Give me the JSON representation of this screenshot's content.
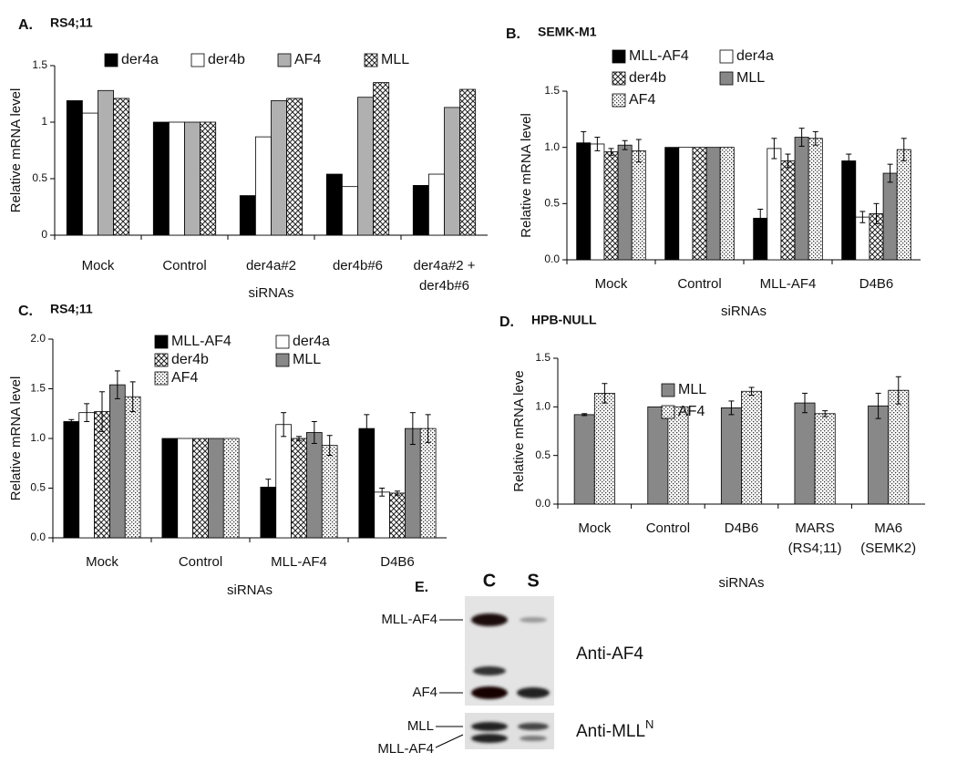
{
  "chart_data": [
    {
      "type": "bar",
      "label": "A.",
      "title": "RS4;11",
      "ylabel": "Relative mRNA level",
      "xlabel": "siRNAs",
      "categories": [
        [
          "Mock"
        ],
        [
          "Control"
        ],
        [
          "der4a#2"
        ],
        [
          "der4b#6"
        ],
        [
          "der4a#2 +",
          "der4b#6"
        ]
      ],
      "series": [
        {
          "name": "der4a",
          "color": "#000000",
          "pattern": "solid",
          "values": [
            1.19,
            1,
            0.35,
            0.54,
            0.44
          ]
        },
        {
          "name": "der4b",
          "color": "#ffffff",
          "pattern": "solid",
          "values": [
            1.08,
            1,
            0.87,
            0.43,
            0.54
          ]
        },
        {
          "name": "AF4",
          "color": "#b0b0b0",
          "pattern": "solid",
          "values": [
            1.28,
            1,
            1.19,
            1.22,
            1.13
          ]
        },
        {
          "name": "MLL",
          "color": "#ffffff",
          "pattern": "cross",
          "values": [
            1.21,
            1,
            1.21,
            1.35,
            1.29
          ]
        }
      ],
      "ylim": [
        0,
        1.5
      ],
      "yticks": [
        0,
        0.5,
        1,
        1.5
      ],
      "legend_columns": 4
    },
    {
      "type": "bar",
      "label": "B.",
      "title": "SEMK-M1",
      "ylabel": "Relative mRNA level",
      "xlabel": "siRNAs",
      "categories": [
        [
          "Mock"
        ],
        [
          "Control"
        ],
        [
          "MLL-AF4"
        ],
        [
          "D4B6"
        ]
      ],
      "series": [
        {
          "name": "MLL-AF4",
          "color": "#000000",
          "pattern": "solid",
          "values": [
            1.04,
            1,
            0.37,
            0.88
          ],
          "errors": [
            0.1,
            0,
            0.08,
            0.06
          ]
        },
        {
          "name": "der4a",
          "color": "#ffffff",
          "pattern": "solid",
          "values": [
            1.03,
            1,
            0.99,
            0.38
          ],
          "errors": [
            0.06,
            0,
            0.09,
            0.05
          ]
        },
        {
          "name": "der4b",
          "color": "#ffffff",
          "pattern": "cross",
          "values": [
            0.96,
            1,
            0.88,
            0.41
          ],
          "errors": [
            0.03,
            0,
            0.06,
            0.09
          ]
        },
        {
          "name": "MLL",
          "color": "#888888",
          "pattern": "solid",
          "values": [
            1.02,
            1,
            1.09,
            0.77
          ],
          "errors": [
            0.04,
            0,
            0.08,
            0.08
          ]
        },
        {
          "name": "AF4",
          "color": "#ffffff",
          "pattern": "dots",
          "values": [
            0.97,
            1,
            1.08,
            0.98
          ],
          "errors": [
            0.1,
            0,
            0.06,
            0.1
          ]
        }
      ],
      "ylim": [
        0,
        1.5
      ],
      "yticks": [
        {
          "value": 0,
          "label": "0.0"
        },
        0.5,
        {
          "value": 1,
          "label": "1.0"
        },
        1.5
      ],
      "legend_columns": 2
    },
    {
      "type": "bar",
      "label": "C.",
      "title": "RS4;11",
      "ylabel": "Relative mRNA level",
      "xlabel": "siRNAs",
      "categories": [
        [
          "Mock"
        ],
        [
          "Control"
        ],
        [
          "MLL-AF4"
        ],
        [
          "D4B6"
        ]
      ],
      "series": [
        {
          "name": "MLL-AF4",
          "color": "#000000",
          "pattern": "solid",
          "values": [
            1.17,
            1,
            0.51,
            1.1
          ],
          "errors": [
            0.02,
            0,
            0.08,
            0.14
          ]
        },
        {
          "name": "der4a",
          "color": "#ffffff",
          "pattern": "solid",
          "values": [
            1.26,
            1,
            1.14,
            0.46
          ],
          "errors": [
            0.09,
            0,
            0.12,
            0.04
          ]
        },
        {
          "name": "der4b",
          "color": "#ffffff",
          "pattern": "cross",
          "values": [
            1.27,
            1,
            1.0,
            0.45
          ],
          "errors": [
            0.2,
            0,
            0.02,
            0.02
          ]
        },
        {
          "name": "MLL",
          "color": "#888888",
          "pattern": "solid",
          "values": [
            1.54,
            1,
            1.06,
            1.1
          ],
          "errors": [
            0.14,
            0,
            0.11,
            0.16
          ]
        },
        {
          "name": "AF4",
          "color": "#ffffff",
          "pattern": "dots",
          "values": [
            1.42,
            1,
            0.93,
            1.1
          ],
          "errors": [
            0.15,
            0,
            0.1,
            0.14
          ]
        }
      ],
      "ylim": [
        0,
        2
      ],
      "yticks": [
        {
          "value": 0,
          "label": "0.0"
        },
        0.5,
        {
          "value": 1,
          "label": "1.0"
        },
        1.5,
        {
          "value": 2,
          "label": "2.0"
        }
      ],
      "legend_columns": 2
    },
    {
      "type": "bar",
      "label": "D.",
      "title": "HPB-NULL",
      "ylabel": "Relative mRNA leve",
      "xlabel": "siRNAs",
      "categories": [
        [
          "Mock"
        ],
        [
          "Control"
        ],
        [
          "D4B6"
        ],
        [
          "MARS",
          "(RS4;11)"
        ],
        [
          "MA6",
          "(SEMK2)"
        ]
      ],
      "series": [
        {
          "name": "MLL",
          "color": "#888888",
          "pattern": "solid",
          "values": [
            0.92,
            1,
            0.99,
            1.04,
            1.01
          ],
          "errors": [
            0.01,
            0,
            0.07,
            0.1,
            0.13
          ]
        },
        {
          "name": "AF4",
          "color": "#ffffff",
          "pattern": "dots",
          "values": [
            1.14,
            1,
            1.16,
            0.93,
            1.17
          ],
          "errors": [
            0.1,
            0,
            0.04,
            0.03,
            0.14
          ]
        }
      ],
      "ylim": [
        0,
        1.5
      ],
      "yticks": [
        {
          "value": 0,
          "label": "0.0"
        },
        0.5,
        {
          "value": 1,
          "label": "1.0"
        },
        1.5
      ],
      "legend_columns": 1
    }
  ],
  "blot": {
    "label": "E.",
    "lanes": [
      "C",
      "S"
    ],
    "bands": [
      "MLL-AF4",
      "AF4",
      "MLL",
      "MLL-AF4"
    ],
    "antibodies": [
      "Anti-AF4",
      "Anti-MLL"
    ],
    "antibody_superscript": "N"
  }
}
